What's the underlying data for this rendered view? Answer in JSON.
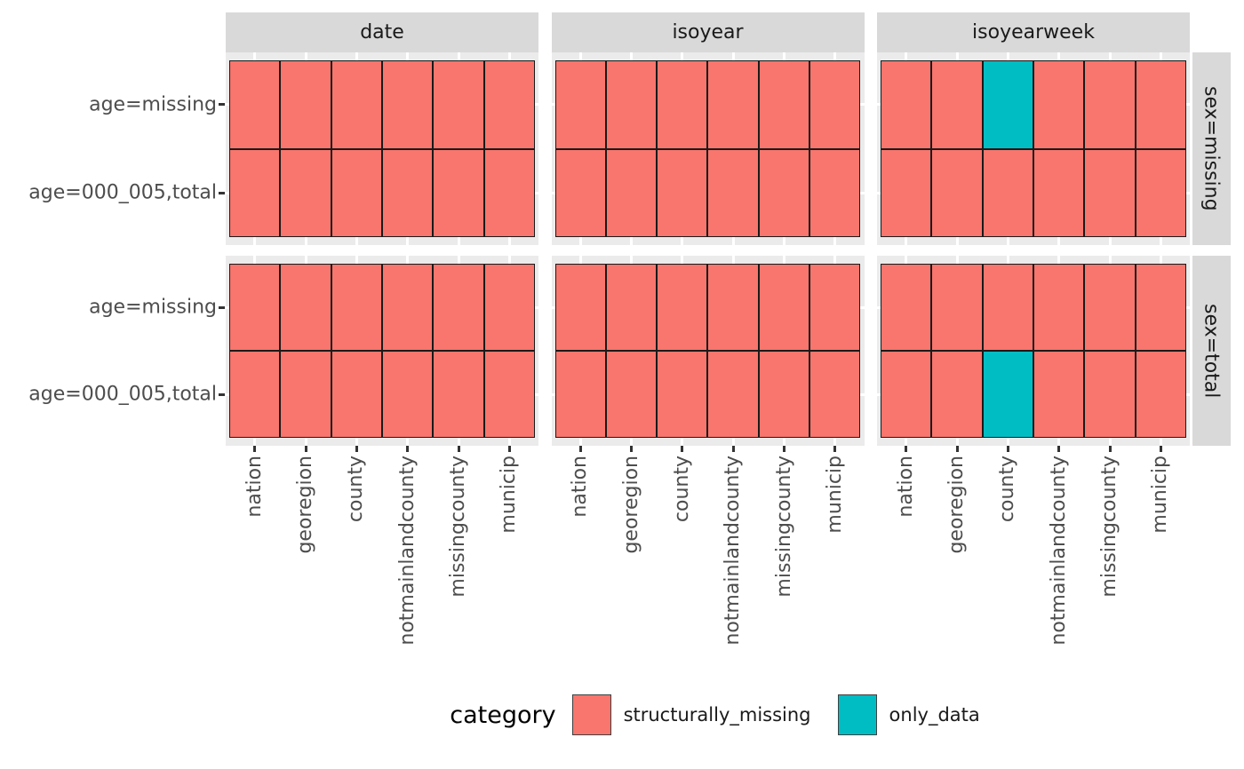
{
  "colors": {
    "structurally_missing": "#F8766D",
    "only_data": "#00BDC4",
    "panel_bg": "#EBEBEB",
    "strip_bg": "#D9D9D9",
    "tile_border": "#1A1A1A",
    "tick": "#333333",
    "axis_text": "#4D4D4D",
    "strip_text": "#1A1A1A",
    "gridline": "#FFFFFF",
    "background": "#FFFFFF"
  },
  "chart_data": {
    "type": "heatmap",
    "facet_cols": [
      "date",
      "isoyear",
      "isoyearweek"
    ],
    "facet_rows": [
      "sex=missing",
      "sex=total"
    ],
    "x_categories": [
      "nation",
      "georegion",
      "county",
      "notmainlandcounty",
      "missingcounty",
      "municip"
    ],
    "y_categories": [
      "age=missing",
      "age=000_005,total"
    ],
    "default_category": "structurally_missing",
    "special_cells": [
      {
        "facet_col": "isoyearweek",
        "facet_row": "sex=missing",
        "x": "county",
        "y": "age=missing",
        "category": "only_data"
      },
      {
        "facet_col": "isoyearweek",
        "facet_row": "sex=total",
        "x": "county",
        "y": "age=000_005,total",
        "category": "only_data"
      }
    ],
    "legend": {
      "title": "category",
      "position": "bottom",
      "entries": [
        {
          "label": "structurally_missing",
          "color_key": "structurally_missing"
        },
        {
          "label": "only_data",
          "color_key": "only_data"
        }
      ]
    },
    "layout_hints": {
      "grid": "white major gridlines at category centers, visible at panel margins",
      "x_axis_labels": "rotated 90, bottom row only",
      "facet_row_strips": "right side, rotated"
    }
  }
}
